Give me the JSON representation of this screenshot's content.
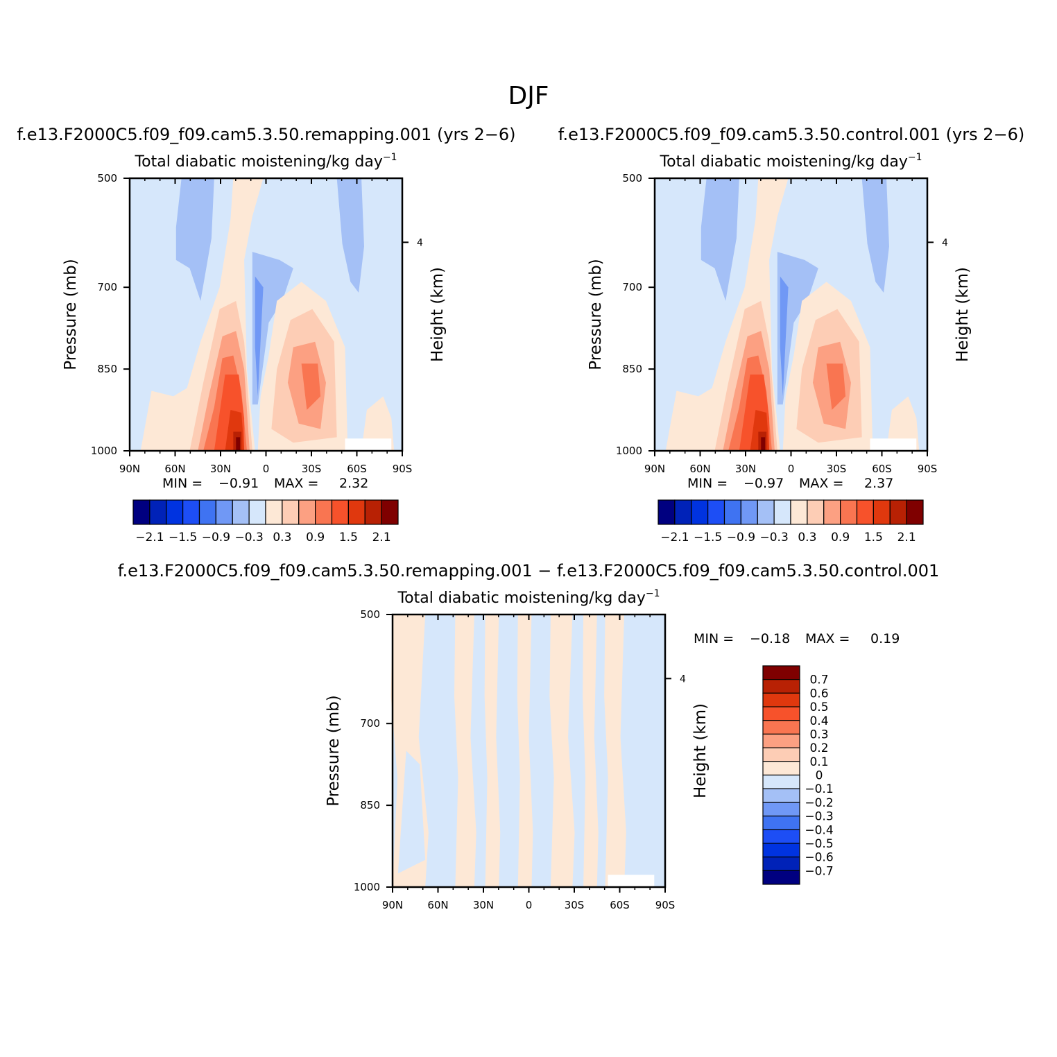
{
  "page_title": "DJF",
  "chart_data": [
    {
      "type": "heatmap",
      "subtitle": "f.e13.F2000C5.f09_f09.cam5.3.50.remapping.001 (yrs 2−6)",
      "title": "Total diabatic moistening/kg day",
      "title_sup": "−1",
      "ylabel": "Pressure (mb)",
      "ylabel_right": "Height (km)",
      "x_ticks": [
        "90N",
        "60N",
        "30N",
        "0",
        "30S",
        "60S",
        "90S"
      ],
      "y_ticks": [
        "500",
        "700",
        "850",
        "1000"
      ],
      "y_right_ticks": [
        "4"
      ],
      "xlim": [
        90,
        -90
      ],
      "ylim": [
        1000,
        500
      ],
      "stats": {
        "min_label": "MIN =",
        "min": "−0.91",
        "max_label": "MAX =",
        "max": "2.32"
      },
      "colorbar": {
        "colors": [
          "#000080",
          "#0022b8",
          "#0033e0",
          "#1d4ef5",
          "#3f73f2",
          "#7098f5",
          "#a4c0f6",
          "#d6e7fb",
          "#fde8d6",
          "#fdcdb5",
          "#fca082",
          "#f97551",
          "#f7522b",
          "#e0380e",
          "#b82104",
          "#7f0000"
        ],
        "labels": [
          "−2.1",
          "−1.5",
          "−0.9",
          "−0.3",
          "0.3",
          "0.9",
          "1.5",
          "2.1"
        ]
      }
    },
    {
      "type": "heatmap",
      "subtitle": "f.e13.F2000C5.f09_f09.cam5.3.50.control.001 (yrs 2−6)",
      "title": "Total diabatic moistening/kg day",
      "title_sup": "−1",
      "ylabel": "Pressure (mb)",
      "ylabel_right": "Height (km)",
      "x_ticks": [
        "90N",
        "60N",
        "30N",
        "0",
        "30S",
        "60S",
        "90S"
      ],
      "y_ticks": [
        "500",
        "700",
        "850",
        "1000"
      ],
      "y_right_ticks": [
        "4"
      ],
      "xlim": [
        90,
        -90
      ],
      "ylim": [
        1000,
        500
      ],
      "stats": {
        "min_label": "MIN =",
        "min": "−0.97",
        "max_label": "MAX =",
        "max": "2.37"
      },
      "colorbar": {
        "colors": [
          "#000080",
          "#0022b8",
          "#0033e0",
          "#1d4ef5",
          "#3f73f2",
          "#7098f5",
          "#a4c0f6",
          "#d6e7fb",
          "#fde8d6",
          "#fdcdb5",
          "#fca082",
          "#f97551",
          "#f7522b",
          "#e0380e",
          "#b82104",
          "#7f0000"
        ],
        "labels": [
          "−2.1",
          "−1.5",
          "−0.9",
          "−0.3",
          "0.3",
          "0.9",
          "1.5",
          "2.1"
        ]
      }
    },
    {
      "type": "heatmap",
      "subtitle": "f.e13.F2000C5.f09_f09.cam5.3.50.remapping.001 − f.e13.F2000C5.f09_f09.cam5.3.50.control.001",
      "title": "Total diabatic moistening/kg day",
      "title_sup": "−1",
      "ylabel": "Pressure (mb)",
      "ylabel_right": "Height (km)",
      "x_ticks": [
        "90N",
        "60N",
        "30N",
        "0",
        "30S",
        "60S",
        "90S"
      ],
      "y_ticks": [
        "500",
        "700",
        "850",
        "1000"
      ],
      "y_right_ticks": [
        "4"
      ],
      "xlim": [
        90,
        -90
      ],
      "ylim": [
        1000,
        500
      ],
      "stats": {
        "min_label": "MIN =",
        "min": "−0.18",
        "max_label": "MAX =",
        "max": "0.19"
      },
      "colorbar": {
        "colors": [
          "#7f0000",
          "#b82104",
          "#e0380e",
          "#f7522b",
          "#f97551",
          "#fca082",
          "#fdcdb5",
          "#fde8d6",
          "#d6e7fb",
          "#a4c0f6",
          "#7098f5",
          "#3f73f2",
          "#1d4ef5",
          "#0033e0",
          "#0022b8",
          "#000080"
        ],
        "labels": [
          "0.7",
          "0.6",
          "0.5",
          "0.4",
          "0.3",
          "0.2",
          "0.1",
          "0",
          "−0.1",
          "−0.2",
          "−0.3",
          "−0.4",
          "−0.5",
          "−0.6",
          "−0.7"
        ]
      }
    }
  ]
}
